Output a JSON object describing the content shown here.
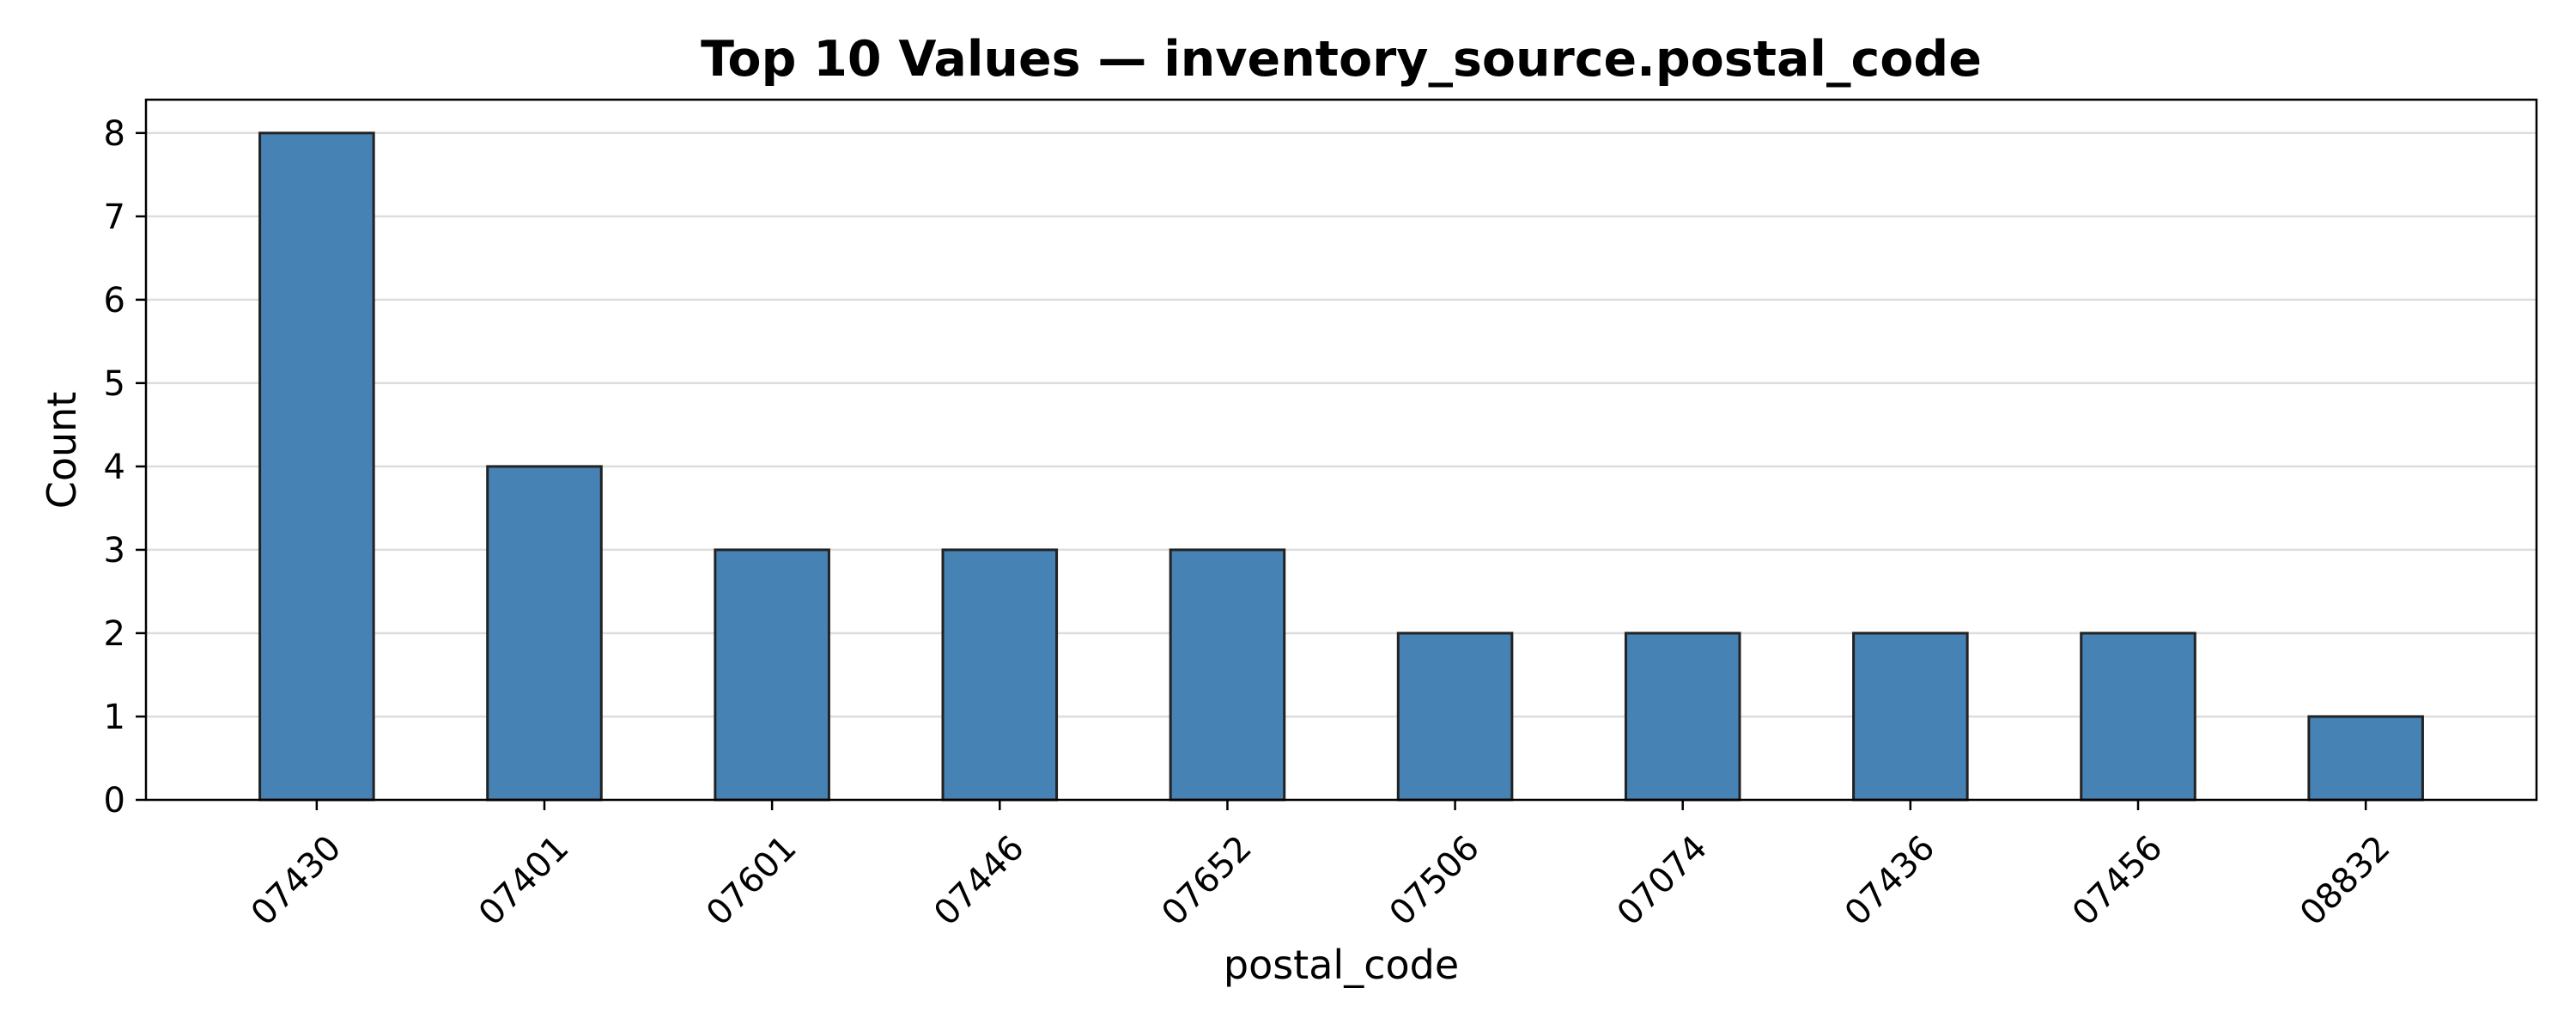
{
  "chart_data": {
    "type": "bar",
    "title": "Top 10 Values — inventory_source.postal_code",
    "xlabel": "postal_code",
    "ylabel": "Count",
    "categories": [
      "07430",
      "07401",
      "07601",
      "07446",
      "07652",
      "07506",
      "07074",
      "07436",
      "07456",
      "08832"
    ],
    "values": [
      8,
      4,
      3,
      3,
      3,
      2,
      2,
      2,
      2,
      1
    ],
    "ylim": [
      0,
      8.4
    ],
    "yticks": [
      0,
      1,
      2,
      3,
      4,
      5,
      6,
      7,
      8
    ],
    "grid": "horizontal",
    "legend": "none",
    "colors": {
      "bar": "#4682b4",
      "bar_edge": "#222222",
      "grid": "#dddddd"
    }
  }
}
